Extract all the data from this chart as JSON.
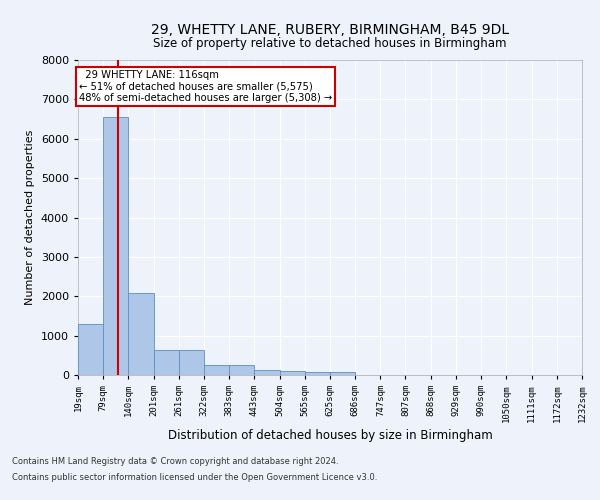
{
  "title": "29, WHETTY LANE, RUBERY, BIRMINGHAM, B45 9DL",
  "subtitle": "Size of property relative to detached houses in Birmingham",
  "xlabel": "Distribution of detached houses by size in Birmingham",
  "ylabel": "Number of detached properties",
  "footer_line1": "Contains HM Land Registry data © Crown copyright and database right 2024.",
  "footer_line2": "Contains public sector information licensed under the Open Government Licence v3.0.",
  "annotation_line1": "29 WHETTY LANE: 116sqm",
  "annotation_line2": "← 51% of detached houses are smaller (5,575)",
  "annotation_line3": "48% of semi-detached houses are larger (5,308) →",
  "bar_edges": [
    19,
    79,
    140,
    201,
    261,
    322,
    383,
    443,
    504,
    565,
    625,
    686,
    747,
    807,
    868,
    929,
    990,
    1050,
    1111,
    1172,
    1232
  ],
  "bar_heights": [
    1300,
    6560,
    2075,
    640,
    640,
    250,
    250,
    125,
    100,
    75,
    75,
    0,
    0,
    0,
    0,
    0,
    0,
    0,
    0,
    0,
    0
  ],
  "bar_color": "#aec6e8",
  "bar_edgecolor": "#5a8fc2",
  "redline_x": 116,
  "ylim": [
    0,
    8000
  ],
  "xlim_left": 19,
  "background_color": "#eef2fb",
  "grid_color": "#ffffff",
  "annotation_box_color": "#ffffff",
  "annotation_box_edgecolor": "#cc0000"
}
